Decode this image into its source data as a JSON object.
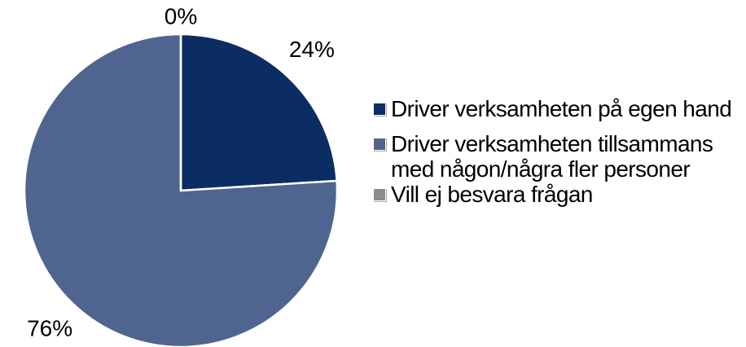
{
  "chart_data": {
    "type": "pie",
    "categories": [
      "Driver verksamheten på egen hand",
      "Driver verksamheten tillsammans med någon/några fler personer",
      "Vill ej besvara frågan"
    ],
    "values": [
      24,
      76,
      0
    ],
    "value_labels": [
      "24%",
      "76%",
      "0%"
    ],
    "colors": [
      "#0b2d63",
      "#4f6590",
      "#8c8c8c"
    ],
    "legend": "right"
  }
}
